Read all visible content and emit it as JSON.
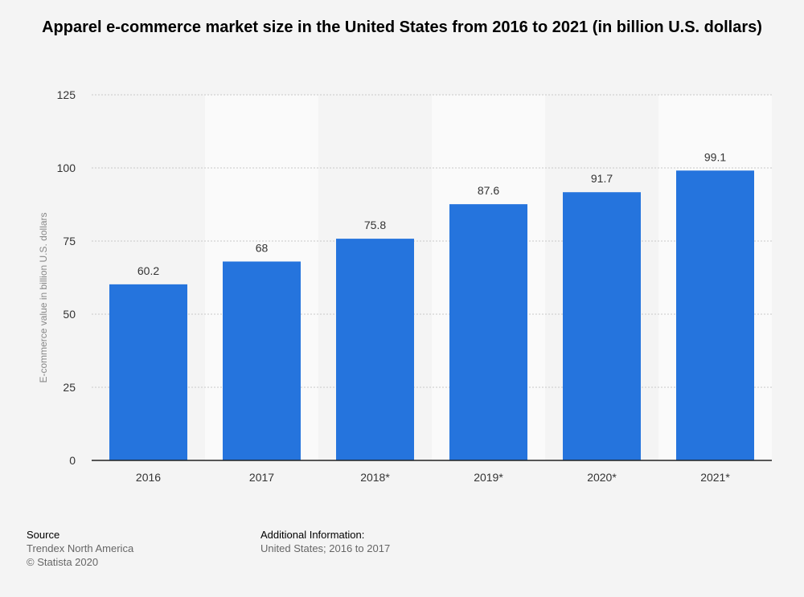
{
  "chart_data": {
    "type": "bar",
    "title": "Apparel e-commerce market size in the United States from 2016 to 2021 (in billion U.S. dollars)",
    "categories": [
      "2016",
      "2017",
      "2018*",
      "2019*",
      "2020*",
      "2021*"
    ],
    "values": [
      60.2,
      68,
      75.8,
      87.6,
      91.7,
      99.1
    ],
    "value_labels": [
      "60.2",
      "68",
      "75.8",
      "87.6",
      "91.7",
      "99.1"
    ],
    "xlabel": "",
    "ylabel": "E-commerce value in billion U.S. dollars",
    "ylim": [
      0,
      125
    ],
    "yticks": [
      0,
      25,
      50,
      75,
      100,
      125
    ],
    "grid": true,
    "legend": "none"
  },
  "colors": {
    "bar": "#2574dd",
    "background": "#f4f4f4",
    "band": "#fafafa",
    "grid": "#c8c8c8",
    "axis": "#222222",
    "tick_text": "#333333",
    "ylabel_text": "#888888"
  },
  "footer": {
    "source_heading": "Source",
    "source_lines": [
      "Trendex North America",
      "© Statista 2020"
    ],
    "info_heading": "Additional Information:",
    "info_lines": [
      "United States; 2016 to 2017"
    ]
  }
}
